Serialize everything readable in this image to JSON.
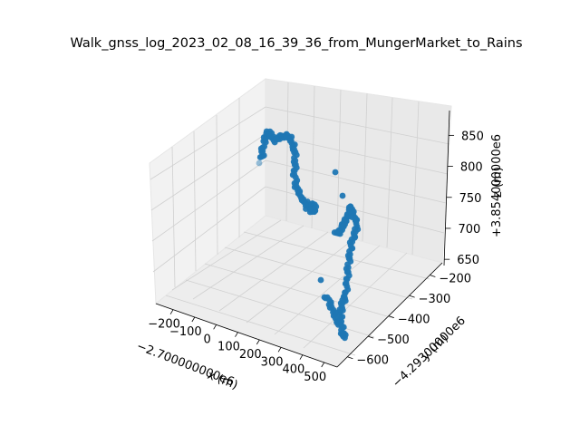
{
  "chart_data": {
    "type": "scatter",
    "projection": "3d",
    "title": "Walk_gnss_log_2023_02_08_16_39_36_from_MungerMarket_to_Rains",
    "marker_color": "#1f77b4",
    "pane_color": "#f2f2f2",
    "grid": true,
    "x_axis": {
      "label": "x (m)",
      "offset_text": "−2.700000000e6",
      "ticks": [
        -200,
        -100,
        0,
        100,
        200,
        300,
        400,
        500
      ],
      "tick_labels": [
        "−200",
        "−100",
        "0",
        "100",
        "200",
        "300",
        "400",
        "500"
      ],
      "range": [
        -280,
        560
      ]
    },
    "y_axis": {
      "label": "y (m)",
      "offset_text": "−4.29300000e6",
      "ticks": [
        -200,
        -300,
        -400,
        -500,
        -600
      ],
      "tick_labels": [
        "−200",
        "−300",
        "−400",
        "−500",
        "−600"
      ],
      "range": [
        -650,
        -140
      ]
    },
    "z_axis": {
      "label": "z (m)",
      "offset_text": "+3.854000000e6",
      "ticks": [
        650,
        700,
        750,
        800,
        850
      ],
      "tick_labels": [
        "650",
        "700",
        "750",
        "800",
        "850"
      ],
      "range": [
        640,
        890
      ]
    },
    "points_shown_as": "projected screen samples of the walk trajectory",
    "trajectory": [
      [
        -205,
        -180,
        862
      ],
      [
        -200,
        -190,
        860
      ],
      [
        -195,
        -200,
        858
      ],
      [
        -190,
        -205,
        857
      ],
      [
        -185,
        -210,
        858
      ],
      [
        -180,
        -215,
        859
      ],
      [
        -175,
        -205,
        861
      ],
      [
        -170,
        -200,
        862
      ],
      [
        -160,
        -195,
        860
      ],
      [
        -150,
        -190,
        858
      ],
      [
        -140,
        -188,
        856
      ],
      [
        -130,
        -190,
        855
      ],
      [
        -120,
        -195,
        850
      ],
      [
        -110,
        -200,
        843
      ],
      [
        -100,
        -205,
        835
      ],
      [
        -95,
        -210,
        828
      ],
      [
        -90,
        -215,
        820
      ],
      [
        -85,
        -220,
        812
      ],
      [
        -80,
        -225,
        804
      ],
      [
        -75,
        -230,
        798
      ],
      [
        -70,
        -232,
        792
      ],
      [
        -60,
        -235,
        788
      ],
      [
        -50,
        -238,
        786
      ],
      [
        -40,
        -240,
        785
      ],
      [
        -30,
        -242,
        784
      ]
    ]
  }
}
